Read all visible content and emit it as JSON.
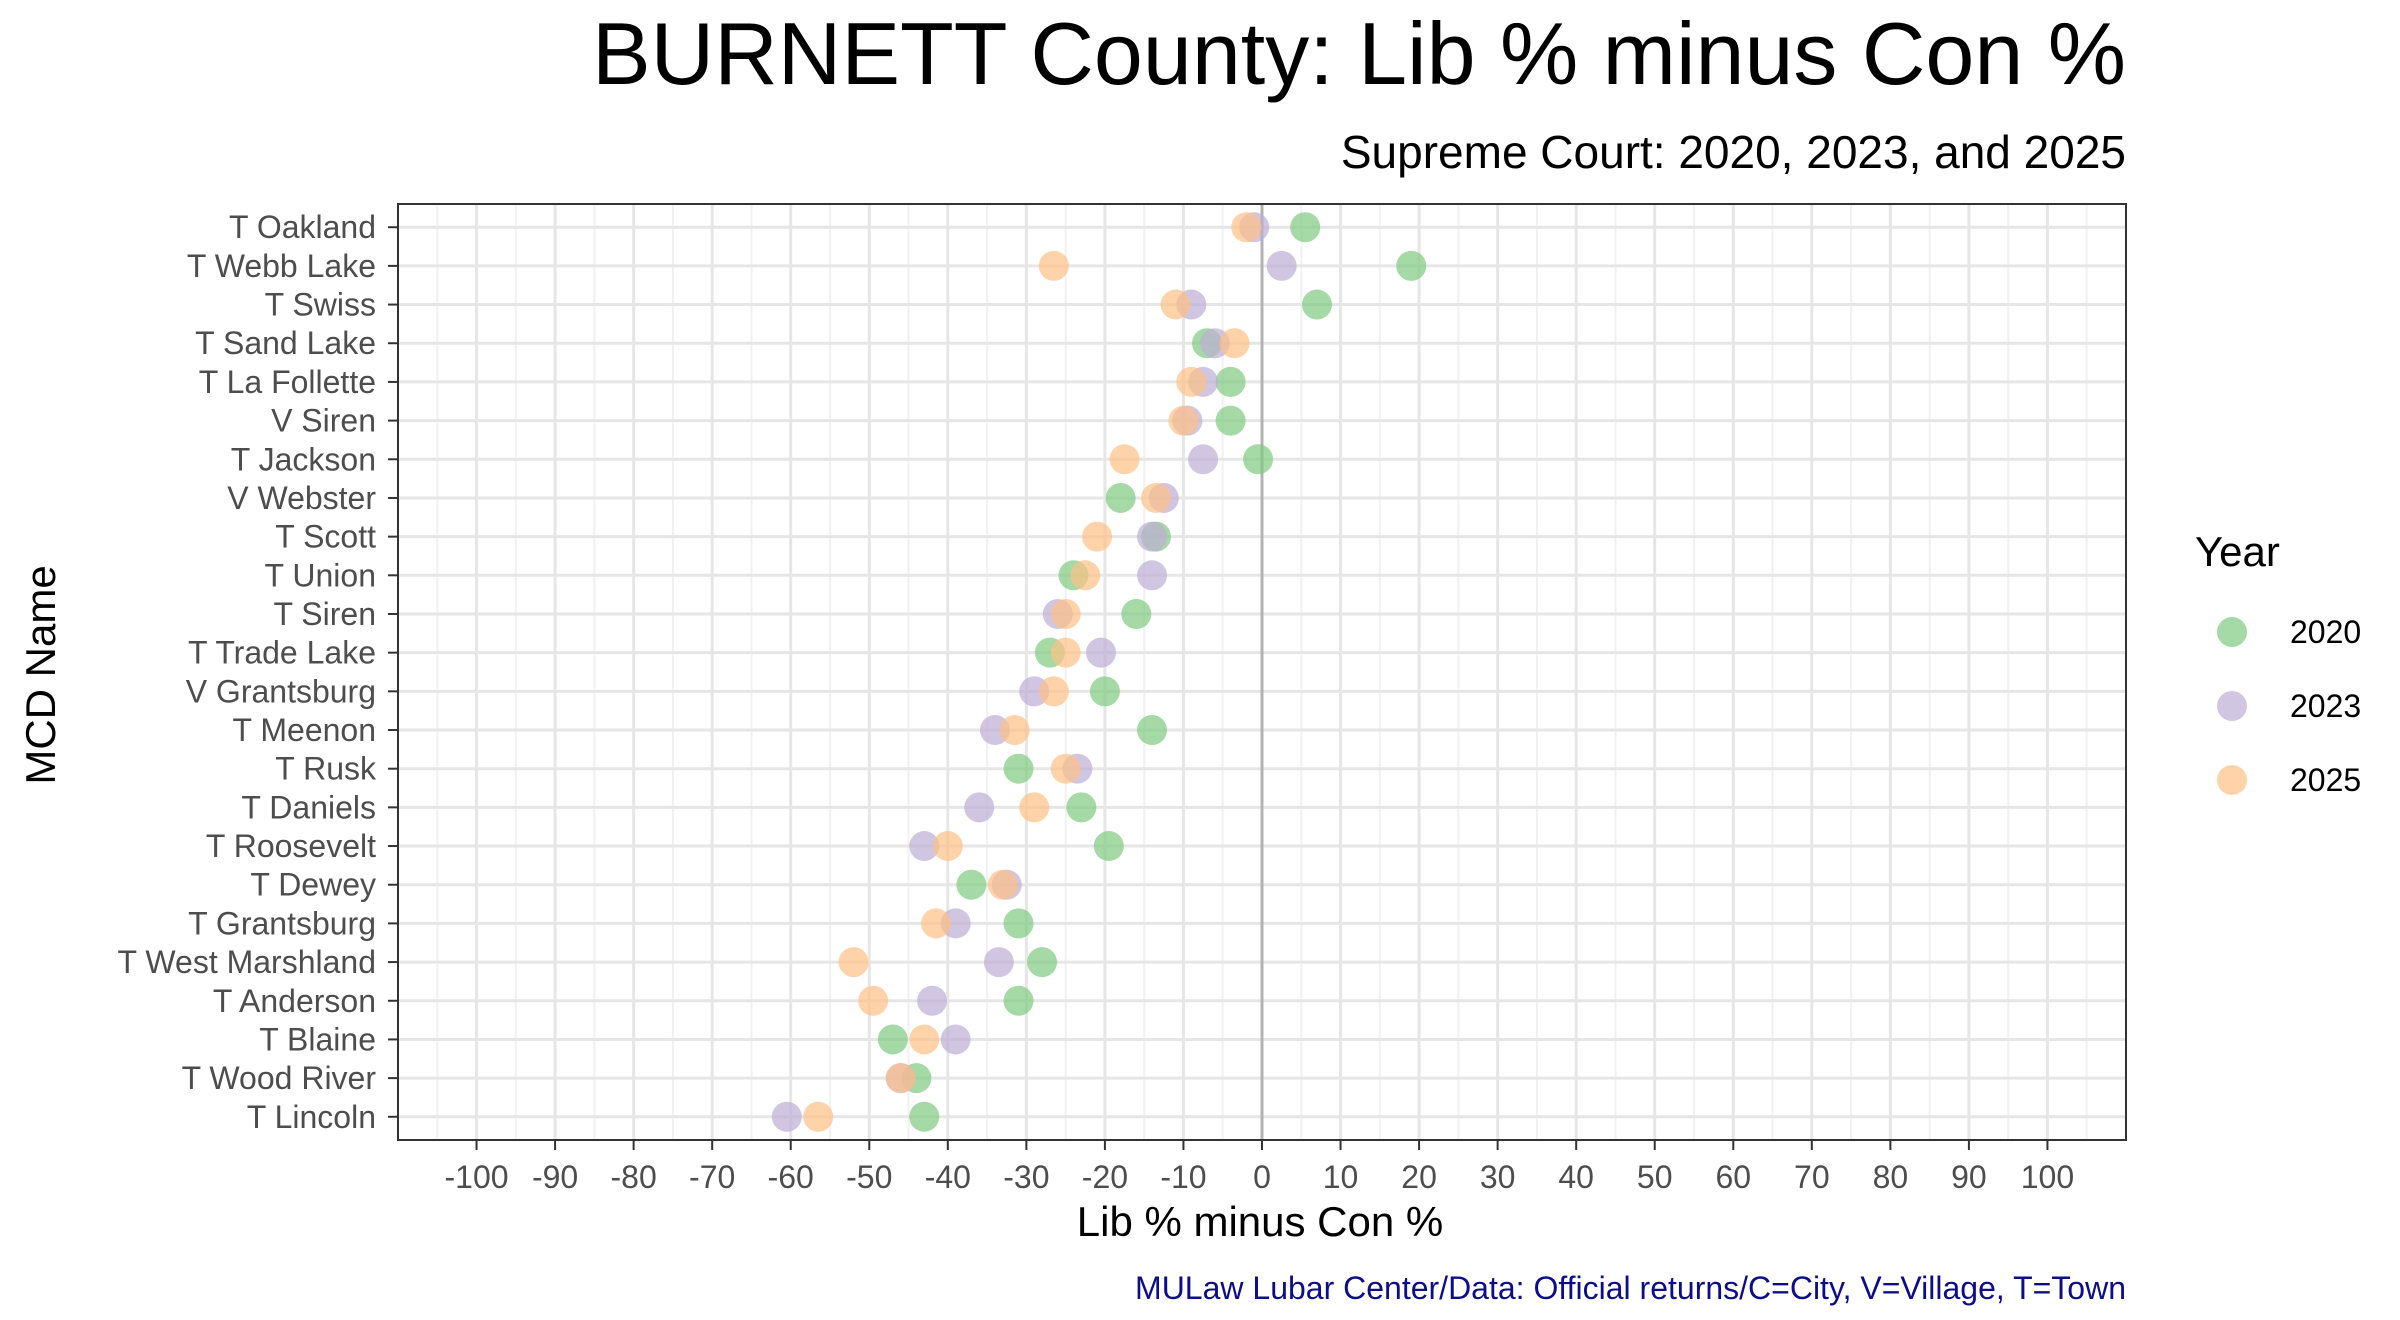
{
  "chart_data": {
    "type": "scatter",
    "title": "BURNETT County: Lib % minus Con %",
    "subtitle": "Supreme Court: 2020, 2023, and 2025",
    "xlabel": "Lib % minus Con %",
    "ylabel": "MCD Name",
    "caption": "MULaw Lubar Center/Data: Official returns/C=City, V=Village, T=Town",
    "xlim": [
      -110,
      110
    ],
    "x_ticks": [
      "-100",
      "-90",
      "-80",
      "-70",
      "-60",
      "-50",
      "-40",
      "-30",
      "-20",
      "-10",
      "0",
      "10",
      "20",
      "30",
      "40",
      "50",
      "60",
      "70",
      "80",
      "90",
      "100"
    ],
    "reference_line_x": 0,
    "grid": true,
    "legend_title": "Year",
    "legend_position": "right",
    "categories": [
      "T Oakland",
      "T Webb Lake",
      "T Swiss",
      "T Sand Lake",
      "T La Follette",
      "V Siren",
      "T Jackson",
      "V Webster",
      "T Scott",
      "T Union",
      "T Siren",
      "T Trade Lake",
      "V Grantsburg",
      "T Meenon",
      "T Rusk",
      "T Daniels",
      "T Roosevelt",
      "T Dewey",
      "T Grantsburg",
      "T West Marshland",
      "T Anderson",
      "T Blaine",
      "T Wood River",
      "T Lincoln"
    ],
    "series": [
      {
        "name": "2020",
        "color": "#7fc97f",
        "values": [
          5.5,
          19,
          7,
          -7,
          -4,
          -4,
          -0.5,
          -18,
          -13.5,
          -24,
          -16,
          -27,
          -20,
          -14,
          -31,
          -23,
          -19.5,
          -37,
          -31,
          -28,
          -31,
          -47,
          -44,
          -43
        ]
      },
      {
        "name": "2023",
        "color": "#beaed4",
        "values": [
          -1,
          2.5,
          -9,
          -6,
          -7.5,
          -9.5,
          -7.5,
          -12.5,
          -14,
          -14,
          -26,
          -20.5,
          -29,
          -34,
          -23.5,
          -36,
          -43,
          -32.5,
          -39,
          -33.5,
          -42,
          -39,
          -46,
          -60.5
        ]
      },
      {
        "name": "2025",
        "color": "#fdc086",
        "values": [
          -2,
          -26.5,
          -11,
          -3.5,
          -9,
          -10,
          -17.5,
          -13.5,
          -21,
          -22.5,
          -25,
          -25,
          -26.5,
          -31.5,
          -25,
          -29,
          -40,
          -33,
          -41.5,
          -52,
          -49.5,
          -43,
          -46,
          -56.5
        ]
      }
    ]
  }
}
